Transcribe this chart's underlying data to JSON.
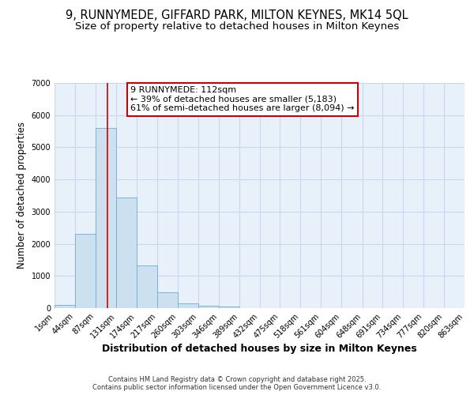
{
  "title1": "9, RUNNYMEDE, GIFFARD PARK, MILTON KEYNES, MK14 5QL",
  "title2": "Size of property relative to detached houses in Milton Keynes",
  "xlabel": "Distribution of detached houses by size in Milton Keynes",
  "ylabel": "Number of detached properties",
  "bar_edges": [
    1,
    44,
    87,
    131,
    174,
    217,
    260,
    303,
    346,
    389,
    432,
    475,
    518,
    561,
    604,
    648,
    691,
    734,
    777,
    820,
    863
  ],
  "bar_heights": [
    100,
    2300,
    5600,
    3450,
    1320,
    480,
    150,
    75,
    50,
    0,
    0,
    0,
    0,
    0,
    0,
    0,
    0,
    0,
    0,
    0
  ],
  "bar_color": "#cce0f0",
  "bar_edgecolor": "#6aaed6",
  "grid_color": "#c8d8ec",
  "bg_color": "#e8f0fa",
  "vline_x": 112,
  "vline_color": "#cc0000",
  "annotation_line1": "9 RUNNYMEDE: 112sqm",
  "annotation_line2": "← 39% of detached houses are smaller (5,183)",
  "annotation_line3": "61% of semi-detached houses are larger (8,094) →",
  "annotation_box_color": "#cc0000",
  "annotation_bg": "#ffffff",
  "ylim": [
    0,
    7000
  ],
  "yticks": [
    0,
    1000,
    2000,
    3000,
    4000,
    5000,
    6000,
    7000
  ],
  "tick_labels": [
    "1sqm",
    "44sqm",
    "87sqm",
    "131sqm",
    "174sqm",
    "217sqm",
    "260sqm",
    "303sqm",
    "346sqm",
    "389sqm",
    "432sqm",
    "475sqm",
    "518sqm",
    "561sqm",
    "604sqm",
    "648sqm",
    "691sqm",
    "734sqm",
    "777sqm",
    "820sqm",
    "863sqm"
  ],
  "footer1": "Contains HM Land Registry data © Crown copyright and database right 2025.",
  "footer2": "Contains public sector information licensed under the Open Government Licence v3.0.",
  "title1_fontsize": 10.5,
  "title2_fontsize": 9.5,
  "xlabel_fontsize": 9,
  "ylabel_fontsize": 8.5,
  "tick_fontsize": 7,
  "annot_fontsize": 8,
  "footer_fontsize": 6
}
